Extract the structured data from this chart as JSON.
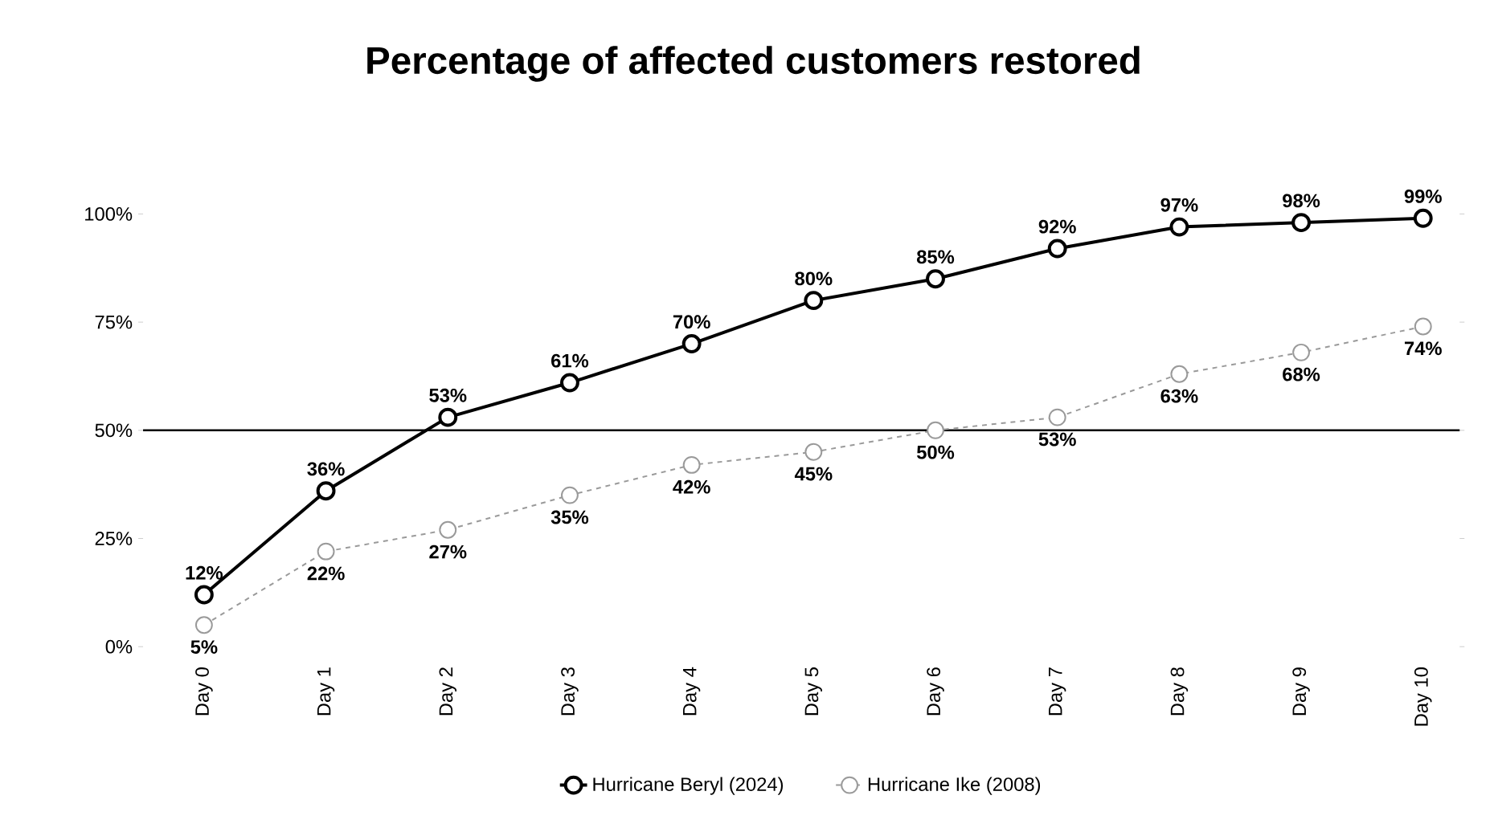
{
  "chart_data": {
    "type": "line",
    "title": "Percentage of affected customers restored",
    "categories": [
      "Day 0",
      "Day 1",
      "Day 2",
      "Day 3",
      "Day 4",
      "Day 5",
      "Day 6",
      "Day 7",
      "Day 8",
      "Day 9",
      "Day 10"
    ],
    "series": [
      {
        "name": "Hurricane Beryl (2024)",
        "color": "#000000",
        "line_style": "solid",
        "values": [
          12,
          36,
          53,
          61,
          70,
          80,
          85,
          92,
          97,
          98,
          99
        ],
        "value_labels": [
          "12%",
          "36%",
          "53%",
          "61%",
          "70%",
          "80%",
          "85%",
          "92%",
          "97%",
          "98%",
          "99%"
        ]
      },
      {
        "name": "Hurricane Ike (2008)",
        "color": "#9a9a9a",
        "line_style": "dashed",
        "values": [
          5,
          22,
          27,
          35,
          42,
          45,
          50,
          53,
          63,
          68,
          74
        ],
        "value_labels": [
          "5%",
          "22%",
          "27%",
          "35%",
          "42%",
          "45%",
          "50%",
          "53%",
          "63%",
          "68%",
          "74%"
        ]
      }
    ],
    "ylim": [
      0,
      100
    ],
    "yticks": [
      {
        "value": 0,
        "label": "0%"
      },
      {
        "value": 25,
        "label": "25%"
      },
      {
        "value": 50,
        "label": "50%"
      },
      {
        "value": 75,
        "label": "75%"
      },
      {
        "value": 100,
        "label": "100%"
      }
    ],
    "ref_lines": [
      {
        "axis": "y",
        "value": 50,
        "color": "#000000"
      }
    ],
    "marker": "circle",
    "legend": "bottom",
    "grid": false
  }
}
